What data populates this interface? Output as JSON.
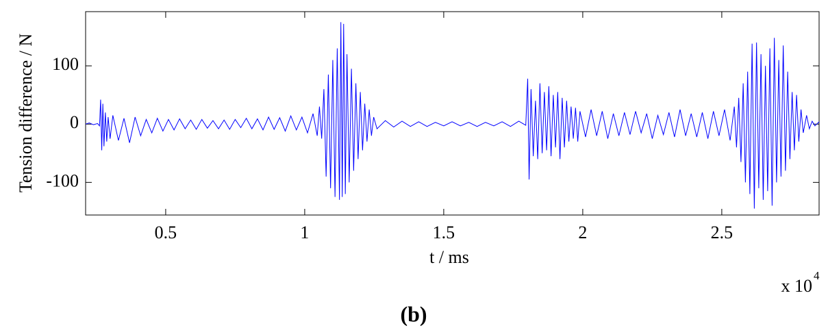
{
  "chart_data": {
    "type": "line",
    "y_label": "Tension difference / N",
    "x_label": "t / ms",
    "x_multiplier": "x 10",
    "x_multiplier_exponent": "4",
    "caption": "(b)",
    "color": "#0000ff",
    "xlim": [
      0.212,
      2.85
    ],
    "xticks": [
      0.5,
      1,
      1.5,
      2,
      2.5
    ],
    "ylim": [
      -156,
      193
    ],
    "yticks": [
      -100,
      0,
      100
    ],
    "grid": false,
    "x": [
      0.212,
      0.225,
      0.24,
      0.255,
      0.262,
      0.266,
      0.27,
      0.274,
      0.278,
      0.283,
      0.288,
      0.293,
      0.3,
      0.31,
      0.33,
      0.35,
      0.37,
      0.39,
      0.41,
      0.43,
      0.45,
      0.47,
      0.49,
      0.51,
      0.53,
      0.55,
      0.57,
      0.59,
      0.61,
      0.63,
      0.65,
      0.67,
      0.69,
      0.71,
      0.73,
      0.75,
      0.77,
      0.79,
      0.81,
      0.83,
      0.85,
      0.87,
      0.89,
      0.91,
      0.93,
      0.95,
      0.97,
      0.99,
      1.01,
      1.03,
      1.045,
      1.053,
      1.061,
      1.069,
      1.077,
      1.085,
      1.093,
      1.101,
      1.109,
      1.117,
      1.125,
      1.13,
      1.135,
      1.14,
      1.146,
      1.152,
      1.16,
      1.168,
      1.176,
      1.184,
      1.192,
      1.2,
      1.208,
      1.216,
      1.224,
      1.232,
      1.24,
      1.248,
      1.26,
      1.29,
      1.32,
      1.35,
      1.38,
      1.41,
      1.44,
      1.47,
      1.5,
      1.53,
      1.56,
      1.59,
      1.62,
      1.65,
      1.68,
      1.71,
      1.74,
      1.77,
      1.795,
      1.802,
      1.807,
      1.814,
      1.822,
      1.83,
      1.838,
      1.846,
      1.854,
      1.862,
      1.87,
      1.878,
      1.886,
      1.894,
      1.902,
      1.91,
      1.918,
      1.926,
      1.934,
      1.942,
      1.95,
      1.958,
      1.966,
      1.974,
      1.982,
      1.99,
      2.01,
      2.03,
      2.05,
      2.07,
      2.09,
      2.11,
      2.13,
      2.15,
      2.17,
      2.19,
      2.21,
      2.23,
      2.25,
      2.27,
      2.29,
      2.31,
      2.33,
      2.35,
      2.37,
      2.39,
      2.41,
      2.43,
      2.45,
      2.47,
      2.49,
      2.51,
      2.53,
      2.545,
      2.553,
      2.561,
      2.569,
      2.577,
      2.585,
      2.593,
      2.601,
      2.609,
      2.617,
      2.625,
      2.633,
      2.641,
      2.649,
      2.657,
      2.665,
      2.673,
      2.681,
      2.689,
      2.697,
      2.705,
      2.713,
      2.721,
      2.729,
      2.737,
      2.745,
      2.753,
      2.761,
      2.769,
      2.777,
      2.785,
      2.793,
      2.805,
      2.815,
      2.825,
      2.835,
      2.85
    ],
    "values": [
      0,
      2,
      -1,
      1,
      -3,
      42,
      -45,
      35,
      -38,
      20,
      -30,
      12,
      -25,
      15,
      -28,
      10,
      -32,
      12,
      -20,
      8,
      -15,
      10,
      -12,
      8,
      -10,
      9,
      -8,
      7,
      -9,
      8,
      -7,
      6,
      -8,
      7,
      -9,
      8,
      -6,
      10,
      -8,
      9,
      -10,
      12,
      -9,
      11,
      -12,
      14,
      -10,
      12,
      -15,
      18,
      -20,
      30,
      -25,
      60,
      -90,
      85,
      -110,
      110,
      -125,
      130,
      -130,
      175,
      -125,
      172,
      -120,
      120,
      -100,
      95,
      -80,
      70,
      -60,
      55,
      -45,
      35,
      -30,
      25,
      -20,
      12,
      -8,
      6,
      -5,
      5,
      -4,
      4,
      -4,
      3,
      -3,
      4,
      -3,
      3,
      -4,
      3,
      -3,
      4,
      -4,
      5,
      -2,
      78,
      -95,
      60,
      -55,
      40,
      -60,
      70,
      -50,
      55,
      -45,
      65,
      -55,
      50,
      -40,
      55,
      -60,
      45,
      -40,
      40,
      -30,
      30,
      -25,
      28,
      -30,
      22,
      -22,
      25,
      -20,
      22,
      -25,
      18,
      -20,
      20,
      -18,
      22,
      -15,
      18,
      -25,
      15,
      -18,
      20,
      -22,
      25,
      -20,
      18,
      -22,
      20,
      -25,
      22,
      -20,
      25,
      -28,
      30,
      -40,
      45,
      -65,
      70,
      -100,
      90,
      -120,
      138,
      -145,
      140,
      -110,
      120,
      -130,
      100,
      -115,
      130,
      -140,
      148,
      -100,
      110,
      -90,
      135,
      -80,
      90,
      -60,
      55,
      -45,
      50,
      -30,
      25,
      -15,
      15,
      -8,
      5,
      -3,
      4
    ]
  }
}
